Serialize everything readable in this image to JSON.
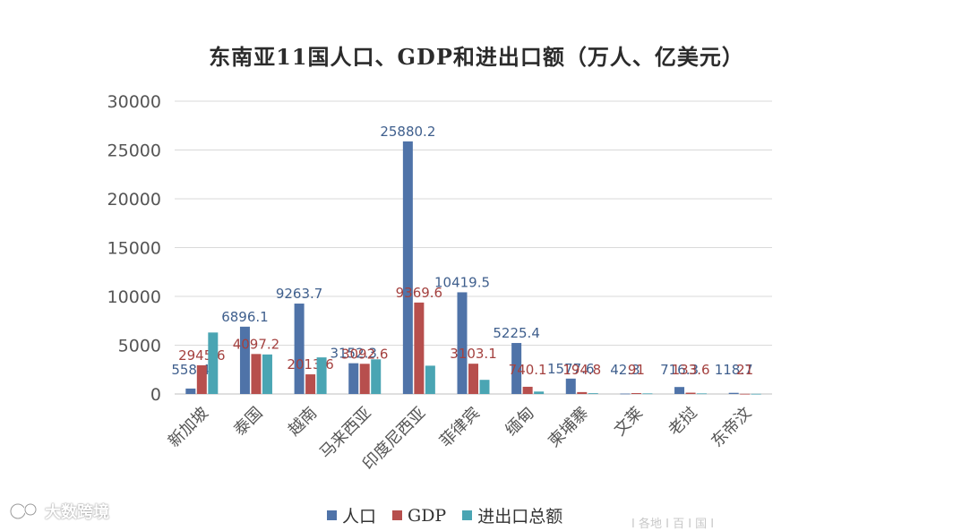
{
  "chart_data": {
    "type": "bar",
    "title": "东南亚11国人口、GDP和进出口额（万人、亿美元）",
    "categories": [
      "新加坡",
      "泰国",
      "越南",
      "马来西亚",
      "印度尼西亚",
      "菲律宾",
      "缅甸",
      "柬埔寨",
      "文莱",
      "老挝",
      "东帝汶"
    ],
    "series": [
      {
        "name": "人口",
        "color": "#4f73a8",
        "values": [
          558.4,
          6896.1,
          9263.7,
          3152.3,
          25880.2,
          10419.5,
          5225.4,
          1577.6,
          42.3,
          716.3,
          118.7
        ],
        "labels": [
          "558.4",
          "6896.1",
          "9263.7",
          "3152.3",
          "25880.2",
          "10419.5",
          "5225.4",
          "1577.6",
          "42.3",
          "716.3",
          "118.7"
        ]
      },
      {
        "name": "GDP",
        "color": "#b74f4d",
        "values": [
          2945.6,
          4097.2,
          2013.6,
          3092.6,
          9369.6,
          3103.1,
          740.1,
          194.8,
          91,
          133.6,
          21
        ],
        "labels": [
          "2945.6",
          "4097.2",
          "2013.6",
          "3092.6",
          "9369.6",
          "3103.1",
          "740.1",
          "194.8",
          "91",
          "133.6",
          "21"
        ]
      },
      {
        "name": "进出口总额",
        "color": "#4aa5b3",
        "values": [
          6300,
          4050,
          3750,
          3550,
          2900,
          1450,
          250,
          80,
          60,
          60,
          20
        ],
        "labels": [
          "",
          "",
          "",
          "",
          "",
          "",
          "",
          "",
          "",
          "",
          ""
        ]
      }
    ],
    "yticks": [
      "0",
      "5000",
      "10000",
      "15000",
      "20000",
      "25000",
      "30000"
    ],
    "ylim": [
      0,
      30000
    ],
    "grid": true,
    "legend_position": "bottom"
  },
  "watermark": "大数跨境",
  "source_note": "I 各地 I 百 I 国 I"
}
